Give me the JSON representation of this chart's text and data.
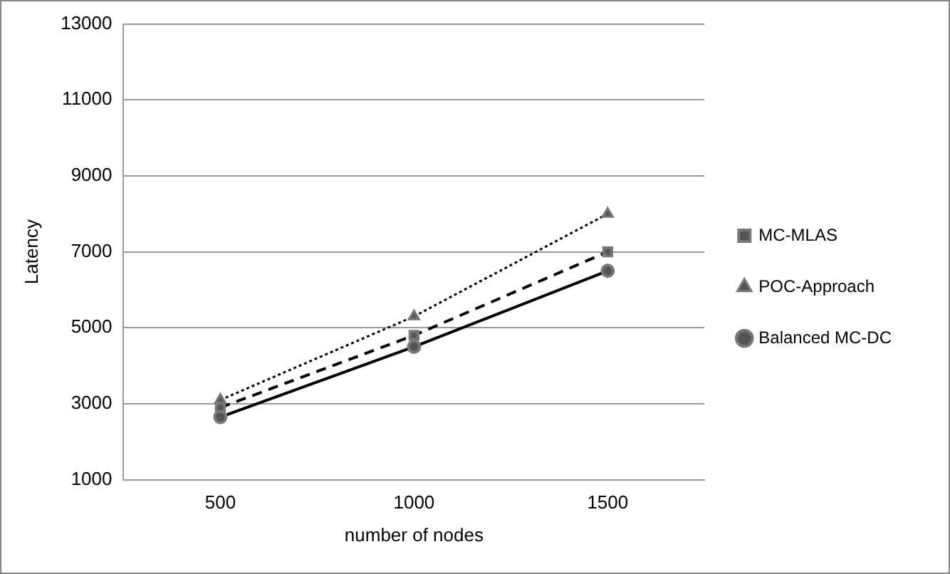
{
  "chart_data": {
    "type": "line",
    "xlabel": "number of nodes",
    "ylabel": "Latency",
    "categories": [
      "500",
      "1000",
      "1500"
    ],
    "series": [
      {
        "name": "MC-MLAS",
        "color": "#000000",
        "marker": "square",
        "line_style": "dashed",
        "values": [
          2900,
          4800,
          7000
        ]
      },
      {
        "name": "POC-Approach",
        "color": "#000000",
        "marker": "triangle",
        "line_style": "dotted",
        "values": [
          3100,
          5300,
          8000
        ]
      },
      {
        "name": "Balanced MC-DC",
        "color": "#000000",
        "marker": "circle",
        "line_style": "solid",
        "values": [
          2650,
          4500,
          6500
        ]
      }
    ],
    "ylim": [
      1000,
      13000
    ],
    "yticks": [
      1000,
      3000,
      5000,
      7000,
      9000,
      11000,
      13000
    ],
    "grid": "y",
    "legend": "right"
  }
}
